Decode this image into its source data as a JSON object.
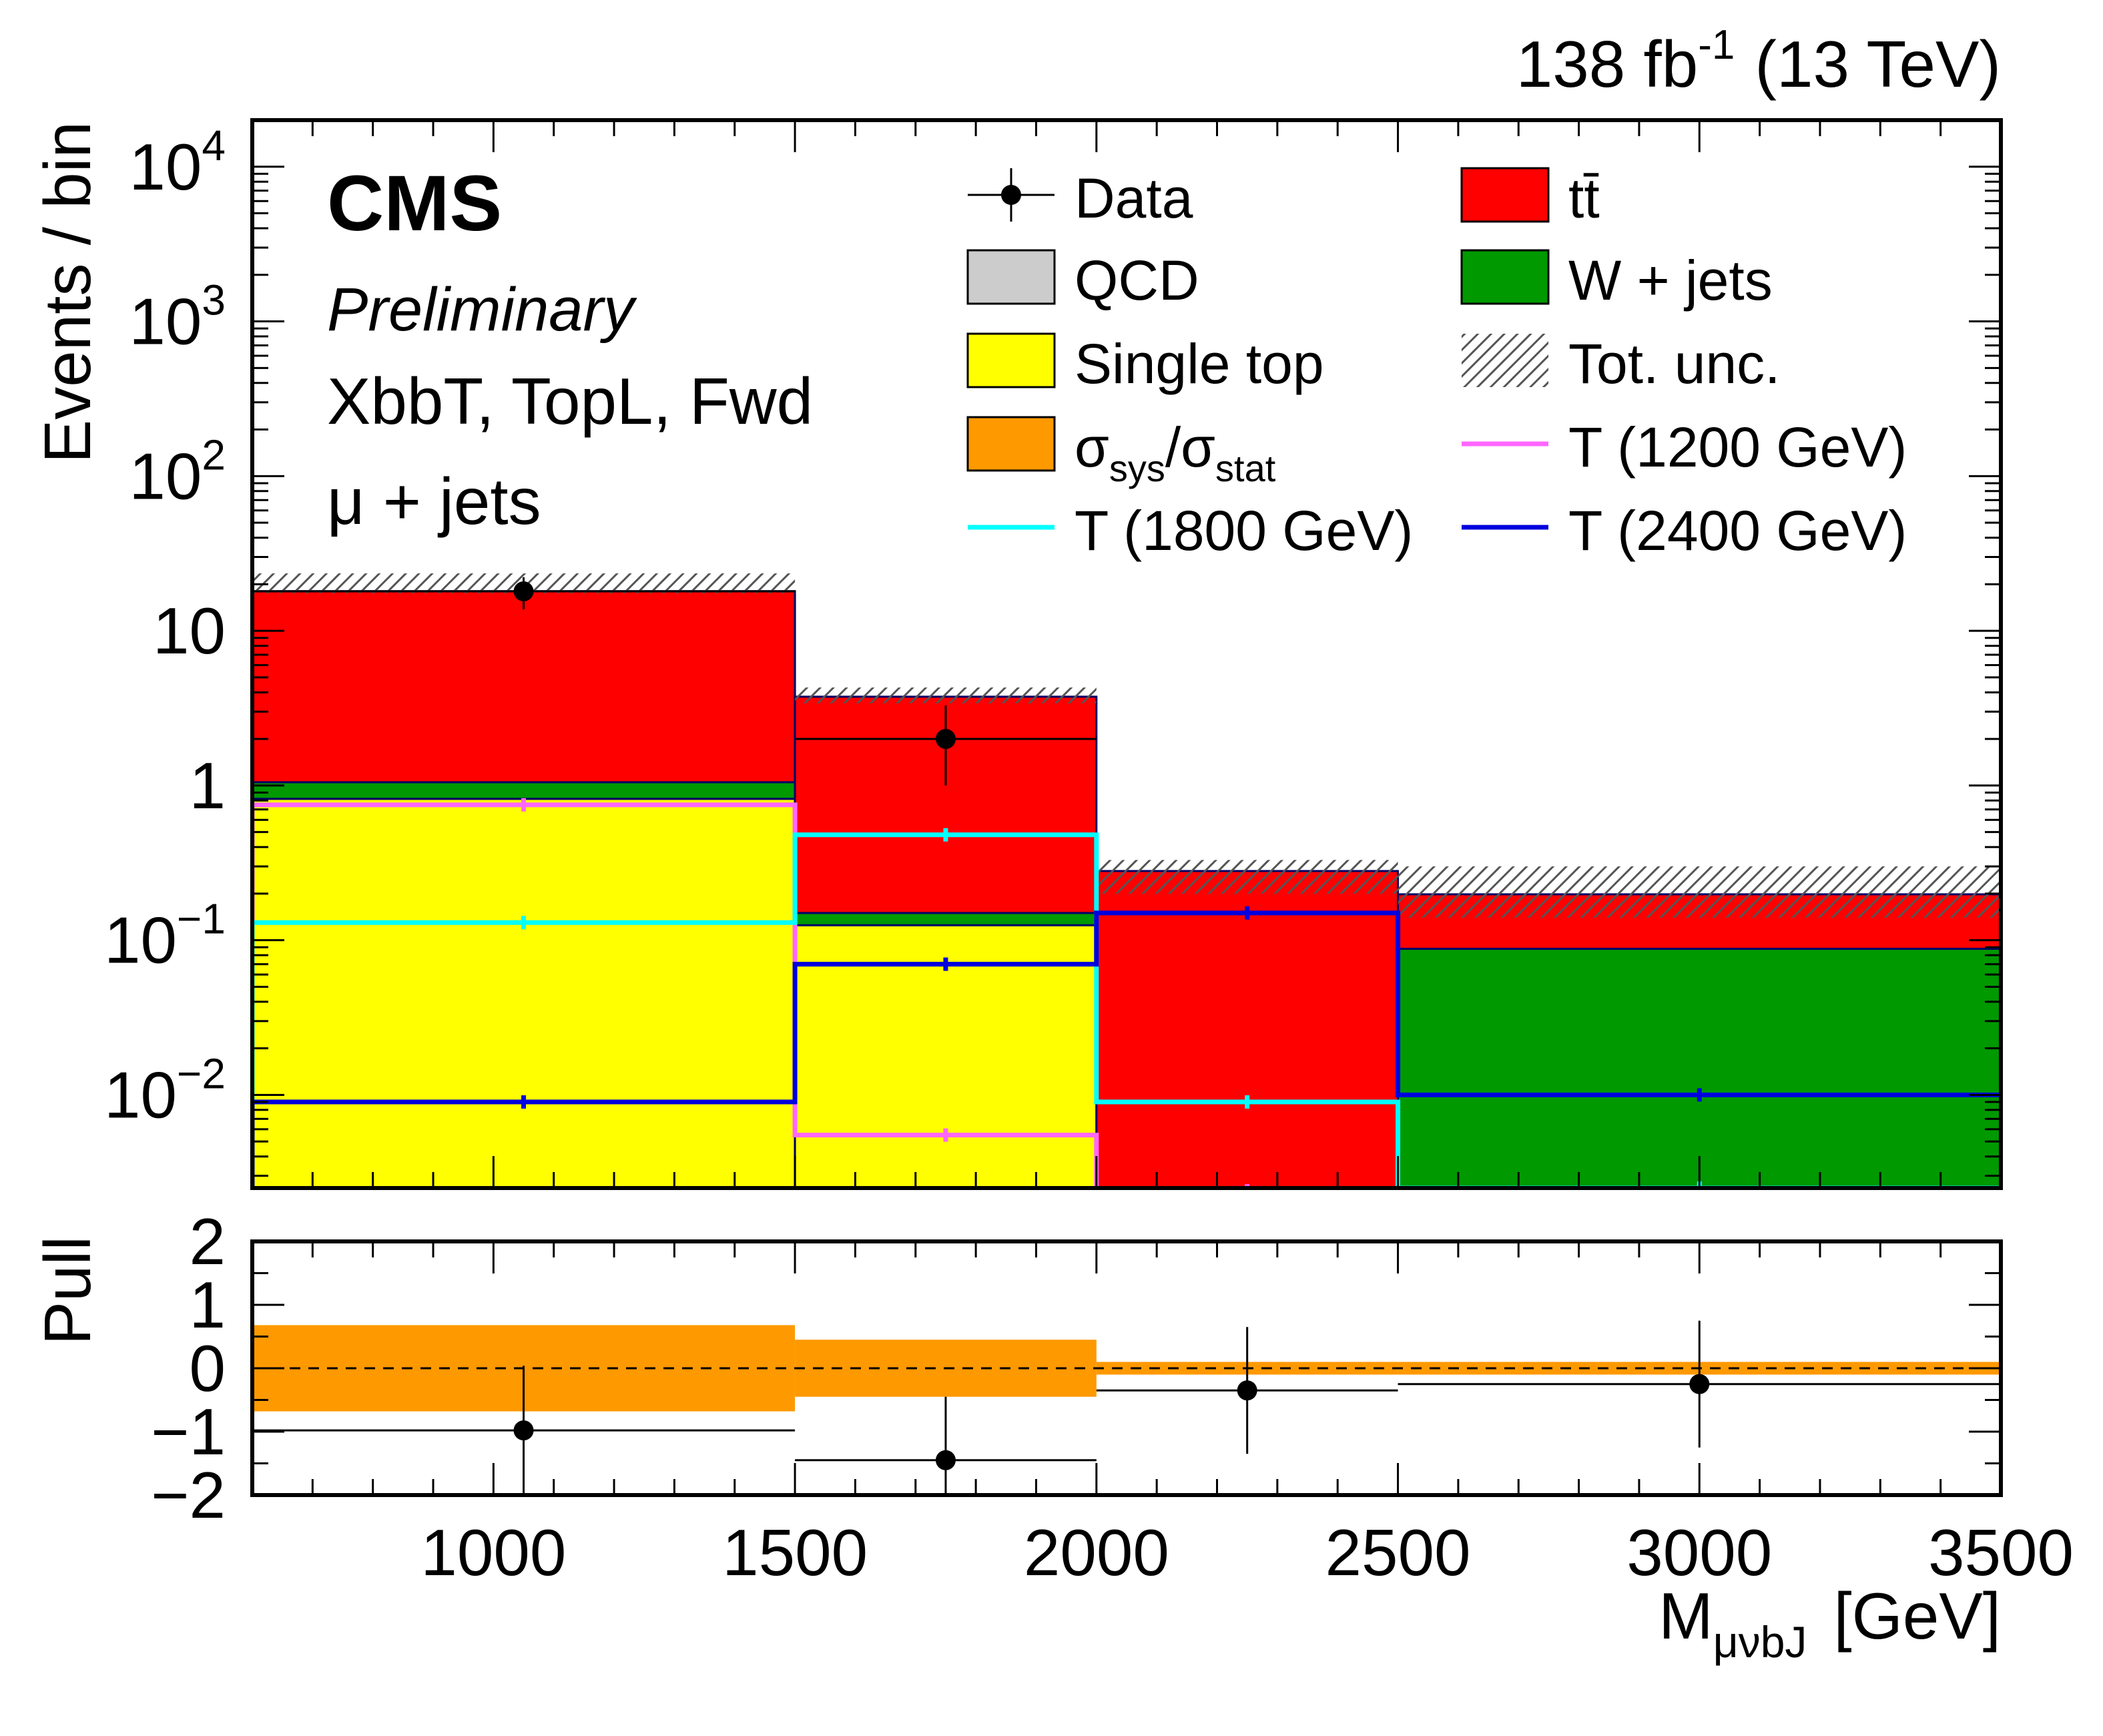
{
  "chart_data": {
    "type": "histogram",
    "title": "",
    "header": {
      "experiment": "CMS",
      "status": "Preliminary",
      "lumi": "138 fb",
      "lumi_exp": "-1",
      "energy": "(13 TeV)",
      "category": "XbbT, TopL, Fwd",
      "channel": "μ + jets"
    },
    "bins": [
      600,
      1500,
      2000,
      2500,
      3500
    ],
    "xlabel": "M",
    "xlabel_sub": "μνbJ",
    "xunit": "[GeV]",
    "xticks": [
      1000,
      1500,
      2000,
      2500,
      3000,
      3500
    ],
    "xlim": [
      600,
      3500
    ],
    "main": {
      "ylabel": "Events / bin",
      "scale": "log",
      "ylim": [
        0.0025,
        20000
      ],
      "ytick_labels": [
        {
          "v": 0.01,
          "base": "10",
          "exp": "−2"
        },
        {
          "v": 0.1,
          "base": "10",
          "exp": "−1"
        },
        {
          "v": 1,
          "base": "1",
          "exp": ""
        },
        {
          "v": 10,
          "base": "10",
          "exp": ""
        },
        {
          "v": 100,
          "base": "10",
          "exp": "2"
        },
        {
          "v": 1000,
          "base": "10",
          "exp": "3"
        },
        {
          "v": 10000,
          "base": "10",
          "exp": "4"
        }
      ],
      "stack": [
        {
          "name": "Single top",
          "color": "#ffff00",
          "values": [
            0.82,
            0.125,
            0.0,
            0.0
          ]
        },
        {
          "name": "W + jets",
          "color": "#009900",
          "values": [
            0.23,
            0.025,
            0.0,
            0.088
          ]
        },
        {
          "name": "QCD",
          "color": "#cccccc",
          "values": [
            0.0,
            0.0,
            0.0,
            0.0
          ]
        },
        {
          "name": "tt̄",
          "color": "#ff0000",
          "values": [
            17.0,
            3.6,
            0.28,
            0.11
          ]
        }
      ],
      "total_unc": [
        {
          "low": 17.5,
          "high": 23.5
        },
        {
          "low": 3.4,
          "high": 4.3
        },
        {
          "low": 0.2,
          "high": 0.33
        },
        {
          "low": 0.14,
          "high": 0.3
        }
      ],
      "data": [
        {
          "x": 1050,
          "y": 18.0,
          "err": 4.2
        },
        {
          "x": 1750,
          "y": 2.0,
          "err_high": 1.3,
          "err_low": 1.0
        },
        {
          "x": 2250,
          "y": 0.0
        },
        {
          "x": 3000,
          "y": 0.0
        }
      ],
      "signals": [
        {
          "name": "T (1200 GeV)",
          "color": "#ff66ff",
          "values": [
            0.75,
            0.0055,
            0.0024,
            0.0024
          ]
        },
        {
          "name": "T (1800 GeV)",
          "color": "#00ffff",
          "values": [
            0.13,
            0.48,
            0.009,
            0.0025
          ]
        },
        {
          "name": "T (2400 GeV)",
          "color": "#0000dd",
          "values": [
            0.009,
            0.07,
            0.15,
            0.01
          ]
        }
      ]
    },
    "pull": {
      "ylabel": "Pull",
      "ylim": [
        -2,
        2
      ],
      "yticks": [
        {
          "v": 2,
          "label": "2"
        },
        {
          "v": 1,
          "label": "1"
        },
        {
          "v": 0,
          "label": "0"
        },
        {
          "v": -1,
          "label": "−1"
        },
        {
          "v": -2,
          "label": "−2"
        }
      ],
      "band": [
        0.68,
        0.45,
        0.1,
        0.1
      ],
      "points": [
        {
          "x": 1050,
          "y": -0.98,
          "err_low": 1.02,
          "err_high": 1.02,
          "xerr": [
            600,
            1500
          ]
        },
        {
          "x": 1750,
          "y": -1.45,
          "err_low": 0.75,
          "err_high": 1.0,
          "xerr": [
            1500,
            2000
          ]
        },
        {
          "x": 2250,
          "y": -0.35,
          "err_low": 1.0,
          "err_high": 1.0,
          "xerr": [
            2000,
            2500
          ]
        },
        {
          "x": 3000,
          "y": -0.25,
          "err_low": 1.0,
          "err_high": 1.0,
          "xerr": [
            2500,
            3500
          ]
        }
      ]
    },
    "legend": {
      "placement": "top-right",
      "entries": [
        {
          "label": "Data",
          "kind": "marker"
        },
        {
          "label": "tt̄",
          "kind": "fill",
          "color": "#ff0000"
        },
        {
          "label": "QCD",
          "kind": "fill",
          "color": "#cccccc"
        },
        {
          "label": "W + jets",
          "kind": "fill",
          "color": "#009900"
        },
        {
          "label": "Single top",
          "kind": "fill",
          "color": "#ffff00"
        },
        {
          "label": "Tot. unc.",
          "kind": "hatch"
        },
        {
          "label": "σsys/σstat",
          "kind": "fill",
          "color": "#ff9900",
          "main": "σ",
          "sub1": "sys",
          "mid": "/σ",
          "sub2": "stat"
        },
        {
          "label": "T (1200 GeV)",
          "kind": "line",
          "color": "#ff66ff"
        },
        {
          "label": "T (1800 GeV)",
          "kind": "line",
          "color": "#00ffff"
        },
        {
          "label": "T (2400 GeV)",
          "kind": "line",
          "color": "#0000dd"
        }
      ]
    },
    "colors": {
      "band": "#ff9900",
      "hist_outline": "#000066"
    }
  }
}
